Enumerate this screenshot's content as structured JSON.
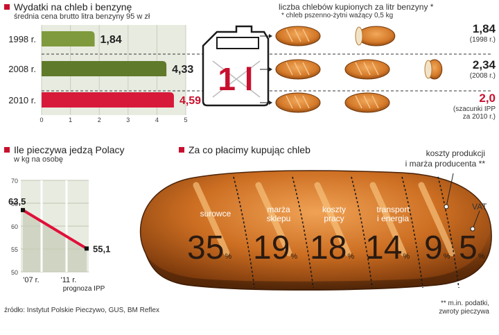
{
  "fuel_chart": {
    "title": "Wydatki na chleb i benzynę",
    "subtitle": "średnia cena brutto litra benzyny 95 w zł",
    "chart_data": {
      "type": "bar",
      "orientation": "horizontal",
      "categories": [
        "1998 r.",
        "2008 r.",
        "2010 r."
      ],
      "values": [
        1.84,
        4.33,
        4.59
      ],
      "value_labels": [
        "1,84",
        "4,33",
        "4,59"
      ],
      "xlim": [
        0,
        5
      ],
      "xticks": [
        "0",
        "1",
        "2",
        "3",
        "4",
        "5"
      ],
      "colors": {
        "1998 r.": "#7f9a3c",
        "2008 r.": "#5f7a2a",
        "2010 r.": "#d81a3a"
      }
    }
  },
  "loaves": {
    "title": "liczba chlebów kupionych za litr benzyny *",
    "note": "* chleb pszenno-żytni ważący 0,5 kg",
    "canister_label": "1 l",
    "rows": [
      {
        "loaves": 1.84,
        "value": "1,84",
        "caption": "(1998 r.)"
      },
      {
        "loaves": 2.34,
        "value": "2,34",
        "caption": "(2008 r.)"
      },
      {
        "loaves": 2.0,
        "value": "2,0",
        "caption_line1": "(szacunki IPP",
        "caption_line2": "za 2010 r.)"
      }
    ]
  },
  "consumption": {
    "title": "Ile pieczywa jedzą Polacy",
    "subtitle": "w kg na osobę",
    "chart_data": {
      "type": "line",
      "categories": [
        "'07 r.",
        "'11 r."
      ],
      "values": [
        63.5,
        55.1
      ],
      "value_labels": [
        "63,5",
        "55,1"
      ],
      "ylim": [
        50,
        70
      ],
      "yticks": [
        "70",
        "65",
        "60",
        "55",
        "50"
      ],
      "forecast_label": "prognoza IPP"
    }
  },
  "cost": {
    "title": "Za co płacimy kupując chleb",
    "chart_data": {
      "type": "bar",
      "segments": [
        {
          "label": "surowce",
          "value": 35
        },
        {
          "label": "marża sklepu",
          "value": 19
        },
        {
          "label": "koszty pracy",
          "value": 18
        },
        {
          "label": "transport i energia",
          "value": 14
        },
        {
          "label": "koszty produkcji i marża producenta **",
          "value": 9
        },
        {
          "label": "VAT",
          "value": 5
        }
      ],
      "unit": "%"
    },
    "labels": {
      "s1": "surowce",
      "s2a": "marża",
      "s2b": "sklepu",
      "s3a": "koszty",
      "s3b": "pracy",
      "s4a": "transport",
      "s4b": "i energia",
      "s5a": "koszty produkcji",
      "s5b": "i marża producenta **",
      "s6": "VAT"
    },
    "pct": {
      "p1": "35",
      "p2": "19",
      "p3": "18",
      "p4": "14",
      "p5": "9",
      "p6": "5",
      "unit": "%"
    },
    "footnote_line1": "** m.in. podatki,",
    "footnote_line2": "zwroty pieczywa"
  },
  "source": "źródło: Instytut Polskie Pieczywo, GUS, BM Reflex"
}
